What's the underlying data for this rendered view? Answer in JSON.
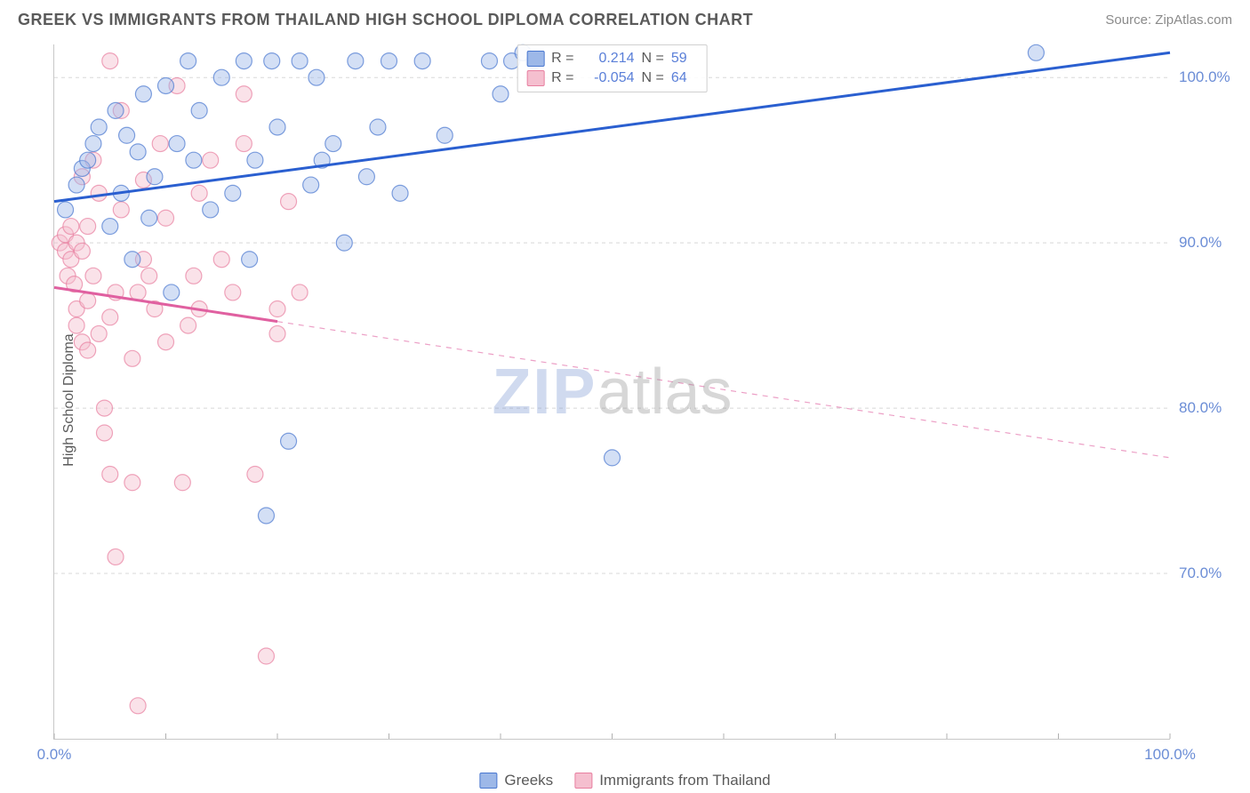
{
  "header": {
    "title": "GREEK VS IMMIGRANTS FROM THAILAND HIGH SCHOOL DIPLOMA CORRELATION CHART",
    "source_prefix": "Source: ",
    "source_name": "ZipAtlas.com"
  },
  "chart": {
    "type": "scatter",
    "y_axis_label": "High School Diploma",
    "xlim": [
      0,
      100
    ],
    "ylim": [
      60,
      102
    ],
    "x_ticks": [
      0,
      10,
      20,
      30,
      40,
      50,
      60,
      70,
      80,
      90,
      100
    ],
    "x_tick_labels": {
      "0": "0.0%",
      "100": "100.0%"
    },
    "y_ticks": [
      70,
      80,
      90,
      100
    ],
    "y_tick_labels": {
      "70": "70.0%",
      "80": "80.0%",
      "90": "90.0%",
      "100": "100.0%"
    },
    "background_color": "#ffffff",
    "grid_color": "#d8d8d8",
    "grid_dash": "4,4",
    "marker_radius": 9,
    "marker_opacity": 0.45,
    "marker_stroke_width": 1.2,
    "line_width": 3,
    "watermark": {
      "part1": "ZIP",
      "part2": "atlas"
    },
    "series": [
      {
        "key": "greeks",
        "label": "Greeks",
        "color_fill": "#9db8e8",
        "color_stroke": "#4a78d0",
        "line_color": "#2a5fd0",
        "R": "0.214",
        "N": "59",
        "trend": {
          "x1": 0,
          "y1": 92.5,
          "x2": 100,
          "y2": 101.5,
          "solid_to_x": 100
        },
        "points": [
          [
            1,
            92
          ],
          [
            2,
            93.5
          ],
          [
            2.5,
            94.5
          ],
          [
            3,
            95
          ],
          [
            3.5,
            96
          ],
          [
            4,
            97
          ],
          [
            5,
            91
          ],
          [
            5.5,
            98
          ],
          [
            6,
            93
          ],
          [
            6.5,
            96.5
          ],
          [
            7,
            89
          ],
          [
            7.5,
            95.5
          ],
          [
            8,
            99
          ],
          [
            8.5,
            91.5
          ],
          [
            9,
            94
          ],
          [
            10,
            99.5
          ],
          [
            10.5,
            87
          ],
          [
            11,
            96
          ],
          [
            12,
            101
          ],
          [
            12.5,
            95
          ],
          [
            13,
            98
          ],
          [
            14,
            92
          ],
          [
            15,
            100
          ],
          [
            16,
            93
          ],
          [
            17,
            101
          ],
          [
            17.5,
            89
          ],
          [
            18,
            95
          ],
          [
            19,
            73.5
          ],
          [
            19.5,
            101
          ],
          [
            20,
            97
          ],
          [
            21,
            78
          ],
          [
            22,
            101
          ],
          [
            23,
            93.5
          ],
          [
            23.5,
            100
          ],
          [
            24,
            95
          ],
          [
            25,
            96
          ],
          [
            26,
            90
          ],
          [
            27,
            101
          ],
          [
            28,
            94
          ],
          [
            29,
            97
          ],
          [
            30,
            101
          ],
          [
            31,
            93
          ],
          [
            33,
            101
          ],
          [
            35,
            96.5
          ],
          [
            39,
            101
          ],
          [
            40,
            99
          ],
          [
            41,
            101
          ],
          [
            42,
            101.5
          ],
          [
            43,
            101
          ],
          [
            50,
            77
          ],
          [
            88,
            101.5
          ]
        ]
      },
      {
        "key": "thailand",
        "label": "Immigrants from Thailand",
        "color_fill": "#f5bfcf",
        "color_stroke": "#e87fa0",
        "line_color": "#e060a0",
        "R": "-0.054",
        "N": "64",
        "trend": {
          "x1": 0,
          "y1": 87.3,
          "x2": 100,
          "y2": 77.0,
          "solid_to_x": 20
        },
        "points": [
          [
            0.5,
            90
          ],
          [
            1,
            90.5
          ],
          [
            1,
            89.5
          ],
          [
            1.2,
            88
          ],
          [
            1.5,
            89
          ],
          [
            1.5,
            91
          ],
          [
            1.8,
            87.5
          ],
          [
            2,
            90
          ],
          [
            2,
            85
          ],
          [
            2,
            86
          ],
          [
            2.5,
            84
          ],
          [
            2.5,
            89.5
          ],
          [
            2.5,
            94
          ],
          [
            3,
            86.5
          ],
          [
            3,
            83.5
          ],
          [
            3,
            91
          ],
          [
            3.5,
            88
          ],
          [
            3.5,
            95
          ],
          [
            4,
            84.5
          ],
          [
            4,
            93
          ],
          [
            4.5,
            80
          ],
          [
            4.5,
            78.5
          ],
          [
            5,
            85.5
          ],
          [
            5,
            76
          ],
          [
            5,
            101
          ],
          [
            5.5,
            87
          ],
          [
            5.5,
            71
          ],
          [
            6,
            92
          ],
          [
            6,
            98
          ],
          [
            7,
            75.5
          ],
          [
            7,
            83
          ],
          [
            7.5,
            87
          ],
          [
            7.5,
            62
          ],
          [
            8,
            93.8
          ],
          [
            8,
            89
          ],
          [
            8.5,
            88
          ],
          [
            9,
            86
          ],
          [
            9.5,
            96
          ],
          [
            10,
            84
          ],
          [
            10,
            91.5
          ],
          [
            11,
            99.5
          ],
          [
            11.5,
            75.5
          ],
          [
            12,
            85
          ],
          [
            12.5,
            88
          ],
          [
            13,
            93
          ],
          [
            13,
            86
          ],
          [
            14,
            95
          ],
          [
            15,
            89
          ],
          [
            16,
            87
          ],
          [
            17,
            96
          ],
          [
            17,
            99
          ],
          [
            18,
            76
          ],
          [
            19,
            65
          ],
          [
            20,
            84.5
          ],
          [
            20,
            86
          ],
          [
            21,
            92.5
          ],
          [
            22,
            87
          ]
        ]
      }
    ],
    "legend_labels": {
      "R": "R =",
      "N": "N ="
    }
  }
}
